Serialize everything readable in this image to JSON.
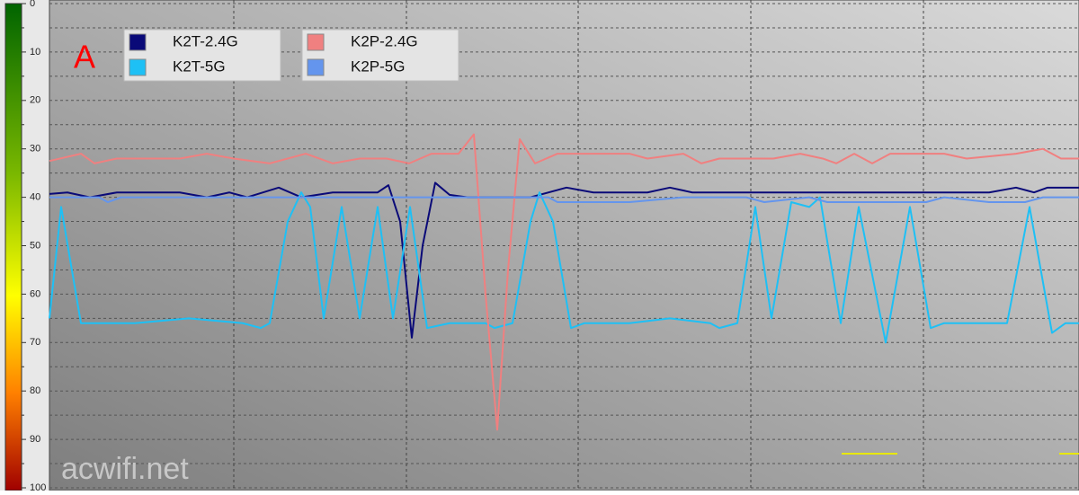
{
  "chart_data": {
    "type": "line",
    "annotations": {
      "panel_label": "A",
      "watermark": "acwifi.net"
    },
    "ylim": [
      0,
      100
    ],
    "y_inverted": true,
    "yticks": [
      0,
      10,
      20,
      30,
      40,
      50,
      60,
      70,
      80,
      90,
      100
    ],
    "minor_yticks": [
      5,
      15,
      25,
      35,
      45,
      55,
      65,
      75,
      85,
      95
    ],
    "xlim": [
      55,
      1200
    ],
    "xticks": [
      260,
      452,
      643,
      835,
      1027
    ],
    "grid": true,
    "series": [
      {
        "name": "K2T-2.4G",
        "color": "#0a0a78",
        "x": [
          55,
          75,
          100,
          130,
          200,
          230,
          255,
          275,
          310,
          335,
          370,
          420,
          432,
          445,
          458,
          470,
          484,
          500,
          520,
          590,
          630,
          660,
          720,
          745,
          770,
          900,
          1100,
          1130,
          1150,
          1165,
          1200
        ],
        "values": [
          39.3,
          39,
          40,
          39,
          39,
          40,
          39,
          40,
          38,
          40,
          39,
          39,
          37.5,
          45,
          69,
          50,
          37,
          39.5,
          40,
          40,
          38,
          39,
          39,
          38,
          39,
          39,
          39,
          38,
          39,
          38,
          38
        ]
      },
      {
        "name": "K2T-5G",
        "color": "#1ec0f5",
        "x": [
          55,
          68,
          90,
          150,
          210,
          270,
          290,
          300,
          320,
          335,
          345,
          360,
          380,
          400,
          420,
          437,
          456,
          475,
          500,
          540,
          550,
          570,
          590,
          600,
          615,
          635,
          650,
          700,
          745,
          790,
          800,
          820,
          840,
          858,
          880,
          900,
          912,
          935,
          955,
          985,
          1012,
          1035,
          1050,
          1120,
          1145,
          1170,
          1185,
          1200
        ],
        "values": [
          65,
          42,
          66,
          66,
          65,
          66,
          67,
          66,
          45,
          39,
          42,
          65,
          42,
          65,
          42,
          65,
          42,
          67,
          66,
          66,
          67,
          66,
          45,
          39,
          45,
          67,
          66,
          66,
          65,
          66,
          67,
          66,
          42,
          65,
          41,
          42,
          40,
          66,
          42,
          70,
          42,
          67,
          66,
          66,
          42,
          68,
          66,
          66
        ]
      },
      {
        "name": "K2P-2.4G",
        "color": "#f08080",
        "x": [
          55,
          90,
          105,
          130,
          200,
          230,
          260,
          300,
          340,
          370,
          400,
          430,
          455,
          480,
          510,
          527,
          540,
          553,
          565,
          578,
          595,
          620,
          700,
          720,
          760,
          780,
          800,
          860,
          890,
          915,
          930,
          950,
          970,
          990,
          1050,
          1075,
          1130,
          1160,
          1180,
          1200
        ],
        "values": [
          32.5,
          31,
          33,
          32,
          32,
          31,
          32,
          33,
          31,
          33,
          32,
          32,
          33,
          31,
          31,
          27,
          60,
          88,
          55,
          28,
          33,
          31,
          31,
          32,
          31,
          33,
          32,
          32,
          31,
          32,
          33,
          31,
          33,
          31,
          31,
          32,
          31,
          30,
          32,
          32
        ]
      },
      {
        "name": "K2P-5G",
        "color": "#6495ed",
        "x": [
          55,
          110,
          120,
          135,
          200,
          280,
          340,
          400,
          450,
          520,
          610,
          620,
          700,
          760,
          830,
          850,
          900,
          920,
          945,
          980,
          1030,
          1050,
          1100,
          1140,
          1160,
          1200
        ],
        "values": [
          40,
          40,
          41,
          40,
          40,
          40,
          40,
          40,
          40,
          40,
          40,
          41,
          41,
          40,
          40,
          41,
          40,
          41,
          41,
          41,
          41,
          40,
          41,
          41,
          40,
          40
        ]
      }
    ]
  }
}
